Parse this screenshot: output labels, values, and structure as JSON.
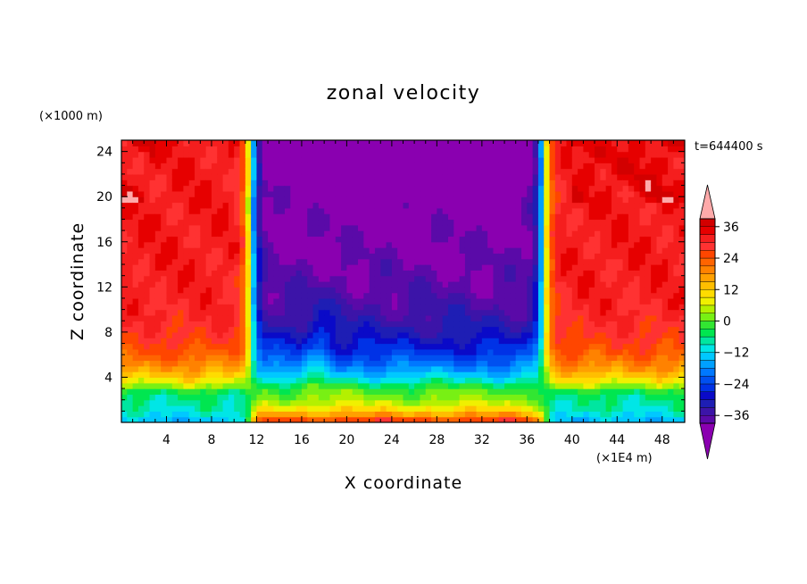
{
  "chart_data": {
    "type": "heatmap",
    "title": "zonal velocity",
    "xlabel": "X coordinate",
    "ylabel": "Z coordinate",
    "x_units": "(×1E4 m)",
    "y_units": "(×1000 m)",
    "time_label": "t=644400 s",
    "xlim": [
      0,
      50
    ],
    "ylim": [
      0,
      25
    ],
    "x_ticks": [
      4,
      8,
      12,
      16,
      20,
      24,
      28,
      32,
      36,
      40,
      44,
      48
    ],
    "x_tick_labels": [
      "4",
      "8",
      "12",
      "16",
      "20",
      "24",
      "28",
      "32",
      "36",
      "40",
      "44",
      "48"
    ],
    "y_ticks": [
      4,
      8,
      12,
      16,
      20,
      24
    ],
    "y_tick_labels": [
      "4",
      "8",
      "12",
      "16",
      "20",
      "24"
    ],
    "colorbar": {
      "levels": [
        -42,
        -39,
        -36,
        -33,
        -30,
        -27,
        -24,
        -21,
        -18,
        -15,
        -12,
        -9,
        -6,
        -3,
        0,
        3,
        6,
        9,
        12,
        15,
        18,
        21,
        24,
        27,
        30,
        33,
        36,
        39,
        42
      ],
      "colors": [
        "#8a00b0",
        "#5a0aa8",
        "#3c14a8",
        "#1e1eb4",
        "#0a0ac8",
        "#0032e6",
        "#0050f0",
        "#0078ff",
        "#00a0ff",
        "#00c8ff",
        "#00e6e6",
        "#00e6a0",
        "#00e650",
        "#32e632",
        "#78f014",
        "#b4f000",
        "#f0f000",
        "#ffdc00",
        "#ffbe00",
        "#ffa000",
        "#ff8200",
        "#ff6400",
        "#ff4600",
        "#ff3232",
        "#f51e1e",
        "#e60000",
        "#d20000",
        "#ffaaaa"
      ],
      "label_values": [
        36,
        24,
        12,
        0,
        -12,
        -24,
        -36
      ],
      "label_texts": [
        "36",
        "24",
        "12",
        "0",
        "−12",
        "−24",
        "−36"
      ]
    },
    "field_description": {
      "west_jet_max": 36,
      "center_jet_min": -42,
      "jet_edges_x": [
        11.5,
        37.5
      ]
    }
  }
}
